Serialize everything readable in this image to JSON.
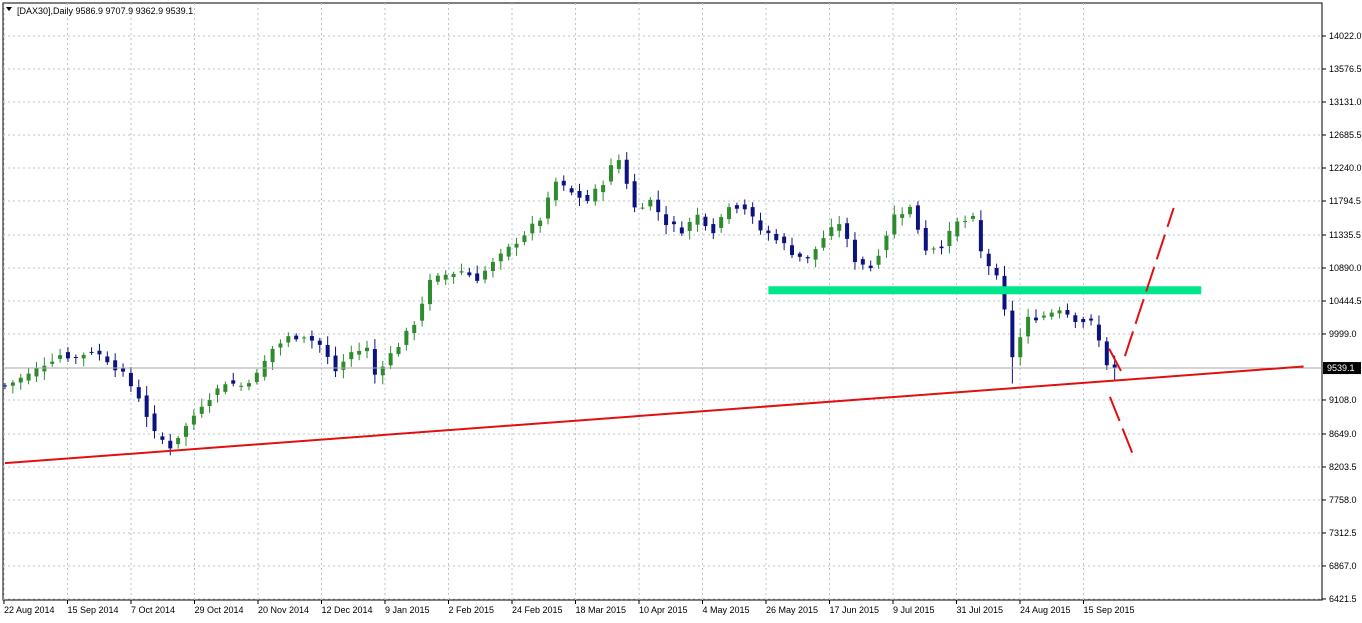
{
  "header": {
    "text": "[DAX30],Daily  9586.9 9707.9 9362.9 9539.1"
  },
  "colors": {
    "bull_candle": "#2e8b2e",
    "bear_candle": "#0c1280",
    "support_line": "#00e68a",
    "trend_line": "#e01010",
    "projection": "#e01010",
    "grid": "#b9c3cf",
    "current_price_line": "#a8a8a8",
    "price_tag_bg": "#000000",
    "price_tag_fg": "#ffffff"
  },
  "chart_data": {
    "type": "candlestick",
    "title": "[DAX30],Daily",
    "ohlc_last": {
      "open": 9586.9,
      "high": 9707.9,
      "low": 9362.9,
      "close": 9539.1
    },
    "current_price_label": "9539.1",
    "ylim": [
      6421.5,
      14450
    ],
    "y_ticks": [
      "14022.0",
      "13576.5",
      "13131.0",
      "12685.5",
      "12240.0",
      "11794.5",
      "11335.5",
      "10890.0",
      "10444.5",
      "9999.0",
      "9108.0",
      "8649.0",
      "8203.5",
      "7758.0",
      "7312.5",
      "6867.0",
      "6421.5"
    ],
    "x_ticks": [
      "22 Aug 2014",
      "15 Sep 2014",
      "7 Oct 2014",
      "29 Oct 2014",
      "20 Nov 2014",
      "12 Dec 2014",
      "9 Jan 2015",
      "2 Feb 2015",
      "24 Feb 2015",
      "18 Mar 2015",
      "10 Apr 2015",
      "4 May 2015",
      "26 May 2015",
      "17 Jun 2015",
      "9 Jul 2015",
      "31 Jul 2015",
      "24 Aug 2015",
      "15 Sep 2015"
    ],
    "price_path": [
      [
        0,
        9300
      ],
      [
        3,
        9450
      ],
      [
        5,
        9600
      ],
      [
        7,
        9720
      ],
      [
        9,
        9680
      ],
      [
        11,
        9780
      ],
      [
        13,
        9650
      ],
      [
        15,
        9450
      ],
      [
        17,
        9150
      ],
      [
        19,
        8650
      ],
      [
        21,
        8480
      ],
      [
        23,
        8750
      ],
      [
        25,
        9050
      ],
      [
        27,
        9250
      ],
      [
        28,
        9350
      ],
      [
        30,
        9300
      ],
      [
        32,
        9450
      ],
      [
        34,
        9800
      ],
      [
        36,
        9950
      ],
      [
        38,
        9980
      ],
      [
        40,
        9850
      ],
      [
        42,
        9500
      ],
      [
        44,
        9750
      ],
      [
        46,
        9800
      ],
      [
        47,
        9450
      ],
      [
        48,
        9600
      ],
      [
        50,
        9850
      ],
      [
        52,
        10150
      ],
      [
        54,
        10700
      ],
      [
        56,
        10800
      ],
      [
        58,
        10850
      ],
      [
        60,
        10750
      ],
      [
        62,
        10950
      ],
      [
        64,
        11150
      ],
      [
        66,
        11350
      ],
      [
        68,
        11550
      ],
      [
        70,
        12050
      ],
      [
        72,
        11900
      ],
      [
        74,
        11800
      ],
      [
        76,
        12050
      ],
      [
        77,
        12250
      ],
      [
        78,
        12350
      ],
      [
        79,
        12050
      ],
      [
        80,
        11700
      ],
      [
        82,
        11800
      ],
      [
        84,
        11500
      ],
      [
        86,
        11400
      ],
      [
        88,
        11600
      ],
      [
        90,
        11400
      ],
      [
        92,
        11750
      ],
      [
        94,
        11700
      ],
      [
        96,
        11400
      ],
      [
        98,
        11300
      ],
      [
        100,
        11100
      ],
      [
        102,
        11000
      ],
      [
        104,
        11300
      ],
      [
        106,
        11500
      ],
      [
        108,
        11000
      ],
      [
        110,
        10900
      ],
      [
        111,
        11100
      ],
      [
        113,
        11600
      ],
      [
        115,
        11700
      ],
      [
        117,
        11150
      ],
      [
        119,
        11200
      ],
      [
        121,
        11500
      ],
      [
        123,
        11550
      ],
      [
        124,
        11100
      ],
      [
        126,
        10750
      ],
      [
        127,
        10300
      ],
      [
        128,
        9700
      ],
      [
        130,
        10200
      ],
      [
        132,
        10250
      ],
      [
        134,
        10350
      ],
      [
        136,
        10200
      ],
      [
        138,
        10150
      ],
      [
        139,
        9900
      ],
      [
        140,
        9600
      ],
      [
        141,
        9539
      ]
    ],
    "annotations": [
      {
        "type": "horizontal_segment",
        "name": "support-resistance",
        "x": [
          97,
          152
        ],
        "y": 10590
      },
      {
        "type": "trend_line",
        "name": "ascending-trendline",
        "x": [
          0,
          165
        ],
        "y": [
          8255,
          9560
        ]
      },
      {
        "type": "projection",
        "name": "bullish-projection-upper",
        "x": [
          142.3,
          148.5
        ],
        "y": [
          9700,
          11700
        ]
      },
      {
        "type": "projection",
        "name": "bullish-projection-lower",
        "x": [
          140.3,
          141.8
        ],
        "y": [
          9800,
          9500
        ]
      },
      {
        "type": "projection",
        "name": "bearish-projection",
        "x": [
          140.4,
          143.4
        ],
        "y": [
          9150,
          8350
        ]
      }
    ]
  }
}
